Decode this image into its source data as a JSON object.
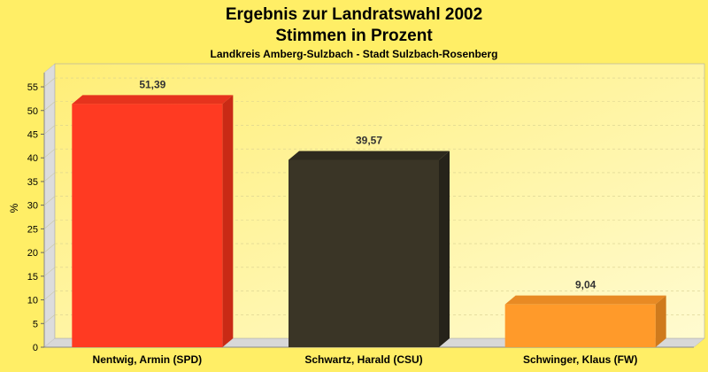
{
  "chart_data": {
    "type": "bar",
    "title": "Ergebnis zur Landratswahl 2002",
    "subtitle": "Stimmen in Prozent",
    "subtitle2": "Landkreis Amberg-Sulzbach - Stadt Sulzbach-Rosenberg",
    "ylabel": "%",
    "ylim": [
      0,
      58
    ],
    "yticks": [
      0,
      5,
      10,
      15,
      20,
      25,
      30,
      35,
      40,
      45,
      50,
      55
    ],
    "grid": true,
    "categories": [
      "Nentwig, Armin (SPD)",
      "Schwartz, Harald (CSU)",
      "Schwinger, Klaus (FW)"
    ],
    "values": [
      51.39,
      39.57,
      9.04
    ],
    "value_labels": [
      "51,39",
      "39,57",
      "9,04"
    ],
    "colors": [
      "#ff3a22",
      "#3a3526",
      "#ff9a2a"
    ],
    "side_colors": [
      "#c92a15",
      "#26231a",
      "#cf7a1c"
    ],
    "top_colors": [
      "#e6331d",
      "#2e2a1e",
      "#e88a24"
    ]
  }
}
